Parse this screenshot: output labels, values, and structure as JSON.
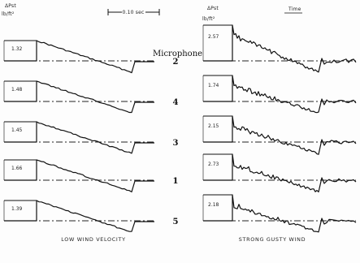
{
  "chart_data": {
    "type": "line",
    "microphone_label": "Microphone",
    "panels": [
      {
        "name": "left",
        "caption": "LOW WIND VELOCITY",
        "scale_label": "0.10 sec",
        "delta_label": "ΔPst",
        "unit_label": "lb/ft²",
        "rows": [
          {
            "microphone": "2",
            "peak": "1.32"
          },
          {
            "microphone": "4",
            "peak": "1.48"
          },
          {
            "microphone": "3",
            "peak": "1.45"
          },
          {
            "microphone": "1",
            "peak": "1.66"
          },
          {
            "microphone": "5",
            "peak": "1.39"
          }
        ]
      },
      {
        "name": "right",
        "caption": "STRONG GUSTY WIND",
        "scale_label": "Time",
        "delta_label": "ΔPst",
        "unit_label": "lb/ft²",
        "rows": [
          {
            "microphone": "2",
            "peak": "2.57"
          },
          {
            "microphone": "4",
            "peak": "1.74"
          },
          {
            "microphone": "3",
            "peak": "2.15"
          },
          {
            "microphone": "1",
            "peak": "2.73"
          },
          {
            "microphone": "5",
            "peak": "2.18"
          }
        ]
      }
    ]
  }
}
